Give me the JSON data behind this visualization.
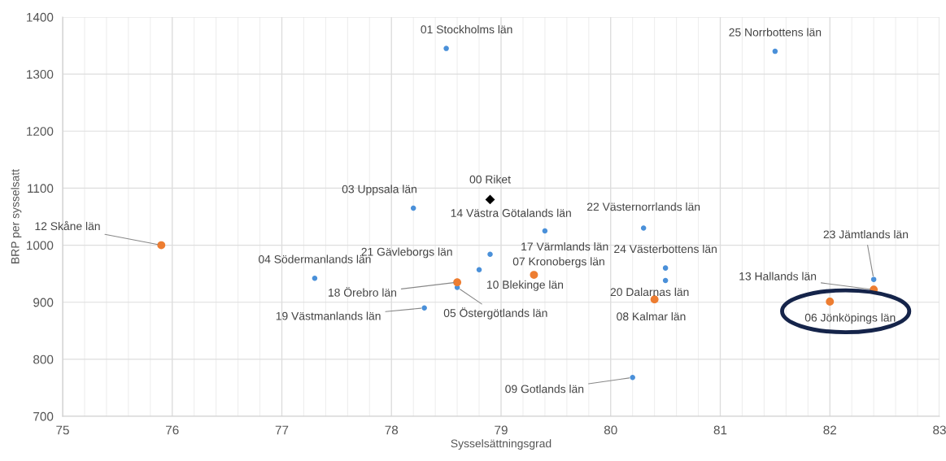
{
  "chart_data": {
    "type": "scatter",
    "xlabel": "Sysselsättningsgrad",
    "ylabel": "BRP per sysselsatt",
    "xlim": [
      75,
      83
    ],
    "ylim": [
      700,
      1400
    ],
    "xticks": [
      75,
      {
        "value": 75.2,
        "label": null
      },
      {
        "value": 75.4,
        "label": null
      },
      {
        "value": 75.6,
        "label": null
      },
      {
        "value": 75.8,
        "label": null
      },
      76,
      {
        "value": 76.2,
        "label": null
      },
      {
        "value": 76.4,
        "label": null
      },
      {
        "value": 76.6,
        "label": null
      },
      {
        "value": 76.8,
        "label": null
      },
      77,
      {
        "value": 77.2,
        "label": null
      },
      {
        "value": 77.4,
        "label": null
      },
      {
        "value": 77.6,
        "label": null
      },
      {
        "value": 77.8,
        "label": null
      },
      78,
      {
        "value": 78.2,
        "label": null
      },
      {
        "value": 78.4,
        "label": null
      },
      {
        "value": 78.6,
        "label": null
      },
      {
        "value": 78.8,
        "label": null
      },
      79,
      {
        "value": 79.2,
        "label": null
      },
      {
        "value": 79.4,
        "label": null
      },
      {
        "value": 79.6,
        "label": null
      },
      {
        "value": 79.8,
        "label": null
      },
      80,
      {
        "value": 80.2,
        "label": null
      },
      {
        "value": 80.4,
        "label": null
      },
      {
        "value": 80.6,
        "label": null
      },
      {
        "value": 80.8,
        "label": null
      },
      81,
      {
        "value": 81.2,
        "label": null
      },
      {
        "value": 81.4,
        "label": null
      },
      {
        "value": 81.6,
        "label": null
      },
      {
        "value": 81.8,
        "label": null
      },
      82,
      {
        "value": 82.2,
        "label": null
      },
      {
        "value": 82.4,
        "label": null
      },
      {
        "value": 82.6,
        "label": null
      },
      {
        "value": 82.8,
        "label": null
      },
      83
    ],
    "yticks": [
      700,
      800,
      900,
      1000,
      1100,
      1200,
      1300,
      1400
    ],
    "grid": true,
    "series": [
      {
        "color": "#4a90d9",
        "marker": "circle",
        "x": [
          78.5,
          78.2,
          77.3,
          78.6,
          80.2,
          78.3,
          78.6,
          78.9,
          78.8,
          79.4,
          80.5,
          80.3,
          82.4,
          80.5,
          81.5
        ],
        "values": [
          1345,
          1065,
          942,
          926,
          768,
          890,
          null,
          984,
          957,
          1025,
          938,
          1030,
          940,
          960,
          1340
        ]
      },
      {
        "color": "#ed7d31",
        "marker": "circle",
        "x": [
          75.9,
          78.6,
          79.3,
          80.4,
          82.4,
          82.0
        ],
        "values": [
          1000,
          935,
          948,
          905,
          922,
          901
        ]
      },
      {
        "color": "#000000",
        "marker": "diamond",
        "x": [
          78.9
        ],
        "values": [
          1080
        ]
      }
    ],
    "annotations": [
      {
        "text": "01 Stockholms län",
        "x": 78.5,
        "y": 1345
      },
      {
        "text": "25 Norrbottens län",
        "x": 81.5,
        "y": 1340
      },
      {
        "text": "00 Riket",
        "x": 78.9,
        "y": 1080
      },
      {
        "text": "03 Uppsala län",
        "x": 78.2,
        "y": 1065
      },
      {
        "text": "14 Västra Götalands län",
        "x": 79.4,
        "y": 1025
      },
      {
        "text": "22 Västernorrlands län",
        "x": 80.3,
        "y": 1030
      },
      {
        "text": "12 Skåne län",
        "x": 75.9,
        "y": 1000
      },
      {
        "text": "04 Södermanlands län",
        "x": 77.3,
        "y": 942
      },
      {
        "text": "21 Gävleborgs län",
        "x": 78.8,
        "y": 957
      },
      {
        "text": "17 Värmlands län",
        "x": 78.9,
        "y": 984
      },
      {
        "text": "07 Kronobergs län",
        "x": 79.3,
        "y": 948
      },
      {
        "text": "18 Örebro län",
        "x": 78.6,
        "y": 935
      },
      {
        "text": "10 Blekinge län",
        "x": 78.6,
        "y": 935
      },
      {
        "text": "05 Östergötlands län",
        "x": 78.6,
        "y": 926
      },
      {
        "text": "19 Västmanlands län",
        "x": 78.3,
        "y": 890
      },
      {
        "text": "24 Västerbottens län",
        "x": 80.5,
        "y": 960
      },
      {
        "text": "20 Dalarnas län",
        "x": 80.5,
        "y": 938
      },
      {
        "text": "08 Kalmar län",
        "x": 80.4,
        "y": 905
      },
      {
        "text": "09 Gotlands län",
        "x": 80.2,
        "y": 768
      },
      {
        "text": "23 Jämtlands län",
        "x": 82.4,
        "y": 940
      },
      {
        "text": "13 Hallands län",
        "x": 82.4,
        "y": 922
      },
      {
        "text": "06 Jönköpings län",
        "x": 82.0,
        "y": 901
      }
    ]
  }
}
